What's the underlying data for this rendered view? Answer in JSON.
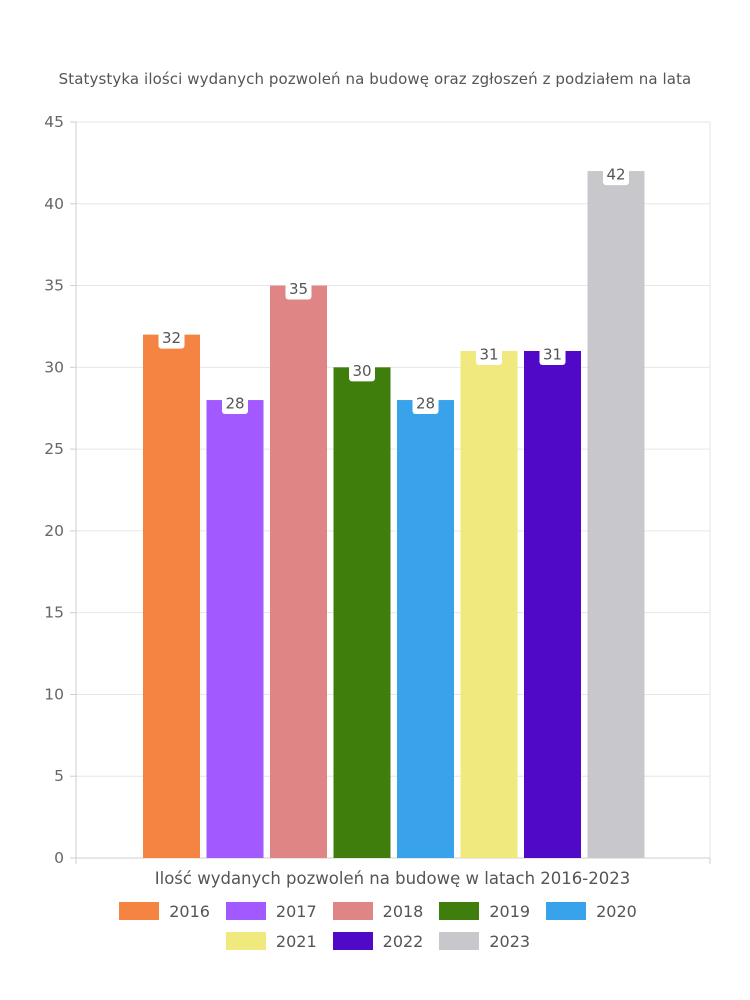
{
  "chart_data": {
    "type": "bar",
    "title": "Statystyka ilości wydanych pozwoleń na budowę oraz zgłoszeń z podziałem na lata",
    "xlabel": "Ilość wydanych pozwoleń na budowę w latach 2016-2023",
    "ylabel": "",
    "ylim": [
      0,
      45
    ],
    "yticks": [
      0,
      5,
      10,
      15,
      20,
      25,
      30,
      35,
      40,
      45
    ],
    "grid": true,
    "legend_position": "bottom",
    "series": [
      {
        "name": "2016",
        "value": 32,
        "color": "#F58442"
      },
      {
        "name": "2017",
        "value": 28,
        "color": "#A259FF"
      },
      {
        "name": "2018",
        "value": 35,
        "color": "#E08585"
      },
      {
        "name": "2019",
        "value": 30,
        "color": "#3F7D0D"
      },
      {
        "name": "2020",
        "value": 28,
        "color": "#38A3EA"
      },
      {
        "name": "2021",
        "value": 31,
        "color": "#F0EA7E"
      },
      {
        "name": "2022",
        "value": 31,
        "color": "#500AC7"
      },
      {
        "name": "2023",
        "value": 42,
        "color": "#C8C8CC"
      }
    ]
  }
}
